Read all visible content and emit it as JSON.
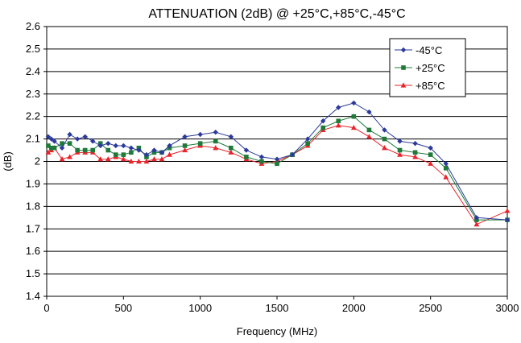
{
  "chart_data": {
    "type": "line",
    "title": "ATTENUATION (2dB) @ +25°C,+85°C,-45°C",
    "xlabel": "Frequency (MHz)",
    "ylabel": "(dB)",
    "xlim": [
      0,
      3000
    ],
    "ylim": [
      1.4,
      2.6
    ],
    "xticks": [
      0,
      500,
      1000,
      1500,
      2000,
      2500,
      3000
    ],
    "yticks": [
      1.4,
      1.5,
      1.6,
      1.7,
      1.8,
      1.9,
      2.0,
      2.1,
      2.2,
      2.3,
      2.4,
      2.5,
      2.6
    ],
    "xtick_labels": [
      "0",
      "500",
      "1000",
      "1500",
      "2000",
      "2500",
      "3000"
    ],
    "ytick_labels": [
      "1.4",
      "1.5",
      "1.6",
      "1.7",
      "1.8",
      "1.9",
      "2",
      "2.1",
      "2.2",
      "2.3",
      "2.4",
      "2.5",
      "2.6"
    ],
    "grid": "horizontal",
    "legend_position": "top-right",
    "series": [
      {
        "name": "-45°C",
        "color": "#2b3a9a",
        "marker": "diamond",
        "x": [
          10,
          30,
          50,
          100,
          150,
          200,
          250,
          300,
          350,
          400,
          450,
          500,
          550,
          600,
          650,
          700,
          750,
          800,
          900,
          1000,
          1100,
          1200,
          1300,
          1400,
          1500,
          1600,
          1700,
          1800,
          1900,
          2000,
          2100,
          2200,
          2300,
          2400,
          2500,
          2600,
          2800,
          3000
        ],
        "y": [
          2.11,
          2.1,
          2.09,
          2.06,
          2.12,
          2.1,
          2.11,
          2.09,
          2.07,
          2.08,
          2.07,
          2.07,
          2.06,
          2.05,
          2.03,
          2.05,
          2.04,
          2.07,
          2.11,
          2.12,
          2.13,
          2.11,
          2.05,
          2.02,
          2.01,
          2.03,
          2.1,
          2.18,
          2.24,
          2.26,
          2.22,
          2.14,
          2.09,
          2.08,
          2.06,
          1.99,
          1.75,
          1.74
        ]
      },
      {
        "name": "+25°C",
        "color": "#1f7a3a",
        "marker": "square",
        "x": [
          10,
          30,
          50,
          100,
          150,
          200,
          250,
          300,
          350,
          400,
          450,
          500,
          550,
          600,
          650,
          700,
          750,
          800,
          900,
          1000,
          1100,
          1200,
          1300,
          1400,
          1500,
          1600,
          1700,
          1800,
          1900,
          2000,
          2100,
          2200,
          2300,
          2400,
          2500,
          2600,
          2800,
          3000
        ],
        "y": [
          2.07,
          2.06,
          2.06,
          2.08,
          2.08,
          2.05,
          2.05,
          2.05,
          2.08,
          2.05,
          2.03,
          2.03,
          2.04,
          2.06,
          2.02,
          2.04,
          2.04,
          2.06,
          2.07,
          2.08,
          2.09,
          2.06,
          2.02,
          2.0,
          1.99,
          2.03,
          2.08,
          2.15,
          2.18,
          2.2,
          2.14,
          2.1,
          2.05,
          2.04,
          2.03,
          1.97,
          1.74,
          1.74
        ]
      },
      {
        "name": "+85°C",
        "color": "#e8232a",
        "marker": "triangle",
        "x": [
          10,
          30,
          50,
          100,
          150,
          200,
          250,
          300,
          350,
          400,
          450,
          500,
          550,
          600,
          650,
          700,
          750,
          800,
          900,
          1000,
          1100,
          1200,
          1300,
          1400,
          1500,
          1600,
          1700,
          1800,
          1900,
          2000,
          2100,
          2200,
          2300,
          2400,
          2500,
          2600,
          2800,
          3000
        ],
        "y": [
          2.04,
          2.05,
          2.06,
          2.01,
          2.02,
          2.04,
          2.04,
          2.04,
          2.01,
          2.01,
          2.02,
          2.01,
          2.0,
          2.0,
          2.0,
          2.01,
          2.01,
          2.03,
          2.05,
          2.07,
          2.06,
          2.04,
          2.01,
          1.99,
          2.0,
          2.03,
          2.07,
          2.14,
          2.16,
          2.15,
          2.11,
          2.06,
          2.03,
          2.02,
          1.99,
          1.93,
          1.72,
          1.78
        ]
      }
    ]
  }
}
